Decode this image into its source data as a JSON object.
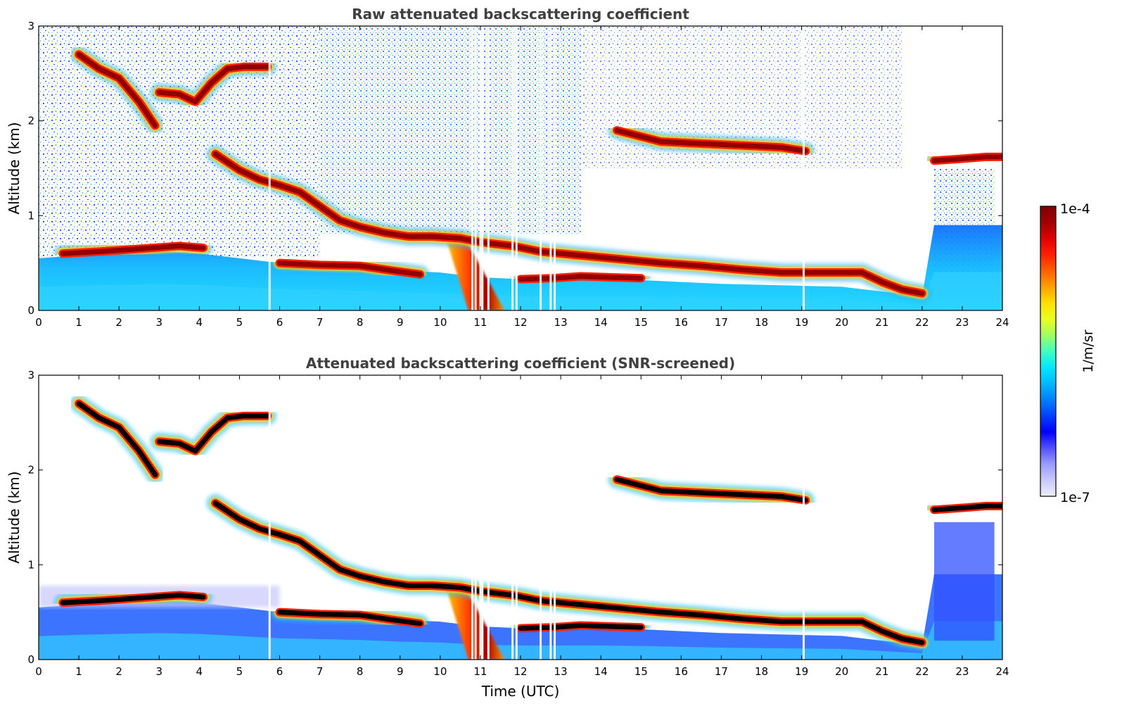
{
  "chart_data": [
    {
      "type": "heatmap",
      "title": "Raw attenuated backscattering coefficient",
      "xlabel": "",
      "ylabel": "Altitude (km)",
      "xlim": [
        0,
        24
      ],
      "ylim": [
        0,
        3
      ],
      "x_ticks": [
        "0",
        "1",
        "2",
        "3",
        "4",
        "5",
        "6",
        "7",
        "8",
        "9",
        "10",
        "11",
        "12",
        "13",
        "14",
        "15",
        "16",
        "17",
        "18",
        "19",
        "20",
        "21",
        "22",
        "23",
        "24"
      ],
      "y_ticks": [
        "0",
        "1",
        "2",
        "3"
      ],
      "screened": false,
      "layers": [
        {
          "t": [
            1.0,
            1.5,
            2.0,
            2.5,
            2.9
          ],
          "z": [
            2.7,
            2.55,
            2.45,
            2.2,
            1.95
          ]
        },
        {
          "t": [
            3.0,
            3.5,
            3.9,
            4.3,
            4.7,
            5.1,
            5.7
          ],
          "z": [
            2.3,
            2.28,
            2.2,
            2.4,
            2.55,
            2.57,
            2.57
          ]
        },
        {
          "t": [
            4.4,
            5.0,
            5.5,
            6.0,
            6.5,
            7.0,
            7.5,
            8.0,
            8.6,
            9.2,
            9.8,
            10.5,
            11.0,
            11.8,
            12.5,
            13.5,
            14.5,
            15.5,
            16.5,
            17.5,
            18.5,
            19.5,
            20.5,
            21.0,
            21.5,
            22.0
          ],
          "z": [
            1.65,
            1.48,
            1.38,
            1.32,
            1.25,
            1.1,
            0.95,
            0.88,
            0.82,
            0.78,
            0.78,
            0.76,
            0.72,
            0.68,
            0.62,
            0.58,
            0.54,
            0.5,
            0.47,
            0.43,
            0.4,
            0.4,
            0.4,
            0.3,
            0.22,
            0.18
          ]
        },
        {
          "t": [
            0.6,
            1.5,
            2.5,
            3.5,
            4.1
          ],
          "z": [
            0.6,
            0.62,
            0.65,
            0.68,
            0.66
          ]
        },
        {
          "t": [
            6.0,
            7.0,
            8.0,
            8.8,
            9.5
          ],
          "z": [
            0.5,
            0.48,
            0.47,
            0.42,
            0.38
          ]
        },
        {
          "t": [
            12.0,
            12.8,
            13.5,
            14.2,
            15.0
          ],
          "z": [
            0.33,
            0.34,
            0.36,
            0.35,
            0.34
          ]
        },
        {
          "t": [
            14.4,
            15.5,
            16.5,
            17.5,
            18.5,
            19.1
          ],
          "z": [
            1.9,
            1.78,
            1.76,
            1.74,
            1.72,
            1.68
          ]
        },
        {
          "t": [
            22.3,
            23.0,
            23.6,
            24.0
          ],
          "z": [
            1.58,
            1.6,
            1.62,
            1.62
          ]
        }
      ],
      "rain_shaft": {
        "t": [
          10.1,
          11.3
        ],
        "z_top": 0.82
      },
      "data_gaps": [
        10.8,
        10.88,
        11.0,
        11.05,
        11.2,
        11.8,
        11.9,
        12.5,
        12.75,
        12.85,
        5.75,
        19.05
      ]
    },
    {
      "type": "heatmap",
      "title": "Attenuated backscattering coefficient (SNR-screened)",
      "xlabel": "Time (UTC)",
      "ylabel": "Altitude (km)",
      "xlim": [
        0,
        24
      ],
      "ylim": [
        0,
        3
      ],
      "x_ticks": [
        "0",
        "1",
        "2",
        "3",
        "4",
        "5",
        "6",
        "7",
        "8",
        "9",
        "10",
        "11",
        "12",
        "13",
        "14",
        "15",
        "16",
        "17",
        "18",
        "19",
        "20",
        "21",
        "22",
        "23",
        "24"
      ],
      "y_ticks": [
        "0",
        "1",
        "2",
        "3"
      ],
      "screened": true
    }
  ],
  "colorbar": {
    "label": "1/m/sr",
    "max_label": "1e-4",
    "min_label": "1e-7",
    "scale": "log",
    "colors": [
      "#eeeeff",
      "#c8c8ff",
      "#9a9aff",
      "#5050ff",
      "#0000ff",
      "#0040ff",
      "#0080ff",
      "#00b8ff",
      "#00e8ff",
      "#40ffc0",
      "#a0ff60",
      "#e8ff20",
      "#ffe000",
      "#ffa000",
      "#ff6000",
      "#ff2000",
      "#e00000",
      "#a00000",
      "#800000"
    ]
  }
}
